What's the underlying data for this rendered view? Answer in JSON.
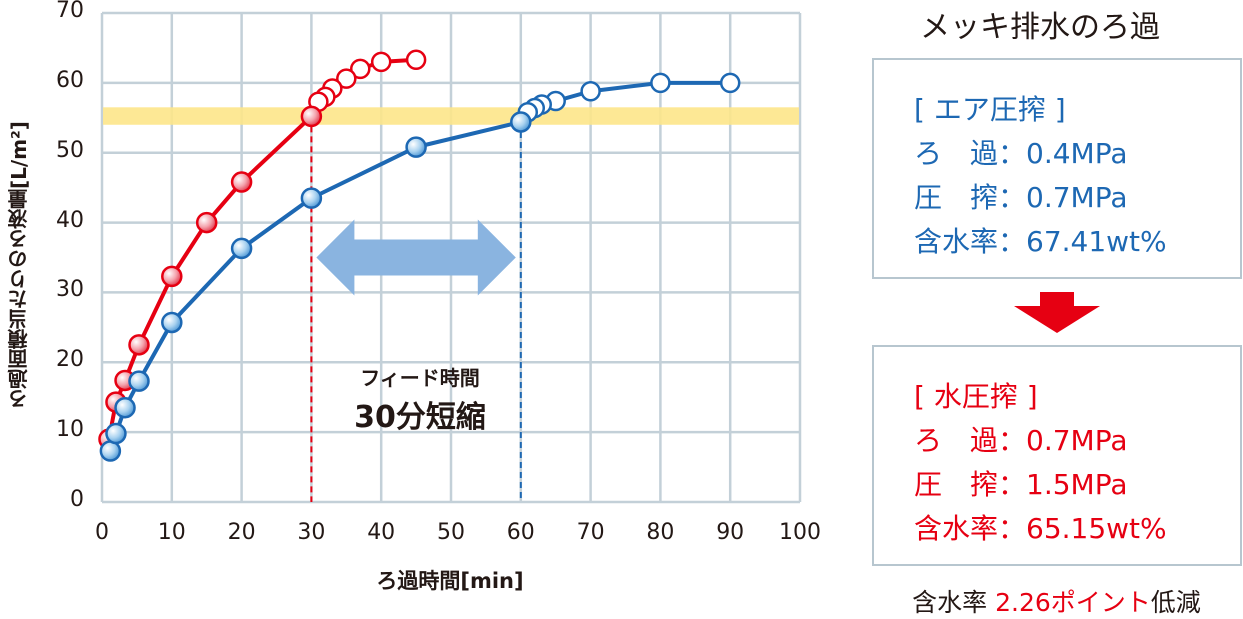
{
  "chart_data": {
    "type": "line",
    "title": "メッキ排水のろ過",
    "xlabel": "ろ過時間[min]",
    "ylabel": "ろ過面積当たりのろ液量[L/m²]",
    "xlim": [
      0,
      100
    ],
    "ylim": [
      0,
      70
    ],
    "xticks": [
      0,
      10,
      20,
      30,
      40,
      50,
      60,
      70,
      80,
      90,
      100
    ],
    "yticks": [
      0,
      10,
      20,
      30,
      40,
      50,
      60,
      70
    ],
    "grid": true,
    "target_band": {
      "y_from": 54,
      "y_to": 56.5,
      "color": "#fde68a"
    },
    "series": [
      {
        "name": "水圧搾",
        "color": "#e60012",
        "filled_points": [
          [
            1,
            9
          ],
          [
            2,
            14.3
          ],
          [
            3.3,
            17.4
          ],
          [
            5.3,
            22.5
          ],
          [
            10,
            32.3
          ],
          [
            15,
            40
          ],
          [
            20,
            45.8
          ],
          [
            30,
            55.2
          ]
        ],
        "open_points": [
          [
            31,
            57.3
          ],
          [
            32,
            58
          ],
          [
            33,
            59.2
          ],
          [
            35,
            60.6
          ],
          [
            37,
            62
          ],
          [
            40,
            63
          ],
          [
            45,
            63.3
          ]
        ],
        "marker_vertical_at_x": 30
      },
      {
        "name": "エア圧搾",
        "color": "#1d68b3",
        "filled_points": [
          [
            1.2,
            7.3
          ],
          [
            2,
            9.8
          ],
          [
            3.3,
            13.5
          ],
          [
            5.3,
            17.3
          ],
          [
            10,
            25.7
          ],
          [
            20,
            36.3
          ],
          [
            30,
            43.5
          ],
          [
            45,
            50.8
          ],
          [
            60,
            54.4
          ]
        ],
        "open_points": [
          [
            61,
            55.8
          ],
          [
            62,
            56.4
          ],
          [
            63,
            56.9
          ],
          [
            65,
            57.4
          ],
          [
            70,
            58.8
          ],
          [
            80,
            60
          ],
          [
            90,
            60
          ]
        ],
        "marker_vertical_at_x": 60
      }
    ],
    "annotations": [
      {
        "text": "フィード時間",
        "x": 45,
        "y": 18
      },
      {
        "text": "30分短縮",
        "x": 45,
        "y": 13
      },
      {
        "type": "double-arrow",
        "x_from": 30,
        "x_to": 60,
        "y": 35,
        "color": "#8ab4e0"
      }
    ]
  },
  "axis": {
    "yticks": [
      "70",
      "60",
      "50",
      "40",
      "30",
      "20",
      "10",
      "0"
    ],
    "xticks": [
      "0",
      "10",
      "20",
      "30",
      "40",
      "50",
      "60",
      "70",
      "80",
      "90",
      "100"
    ],
    "xlabel": "ろ過時間[min]",
    "ylabel": "ろ過面積当たりのろ液量[L/m²]"
  },
  "annotation": {
    "line1": "フィード時間",
    "line2": "30分短縮"
  },
  "side": {
    "title": "メッキ排水のろ過",
    "air": {
      "heading": "[ エア圧搾 ]",
      "filtration": "ろ　過：0.4MPa",
      "press": "圧　搾：0.7MPa",
      "moisture": "含水率：67.41wt%",
      "color": "#1d68b3"
    },
    "water": {
      "heading": "[ 水圧搾 ]",
      "filtration": "ろ　過：0.7MPa",
      "press": "圧　搾：1.5MPa",
      "moisture": "含水率：65.15wt%",
      "color": "#e60012"
    },
    "summary": {
      "prefix": "含水率 ",
      "highlight": "2.26ポイント",
      "suffix": "低減"
    }
  }
}
